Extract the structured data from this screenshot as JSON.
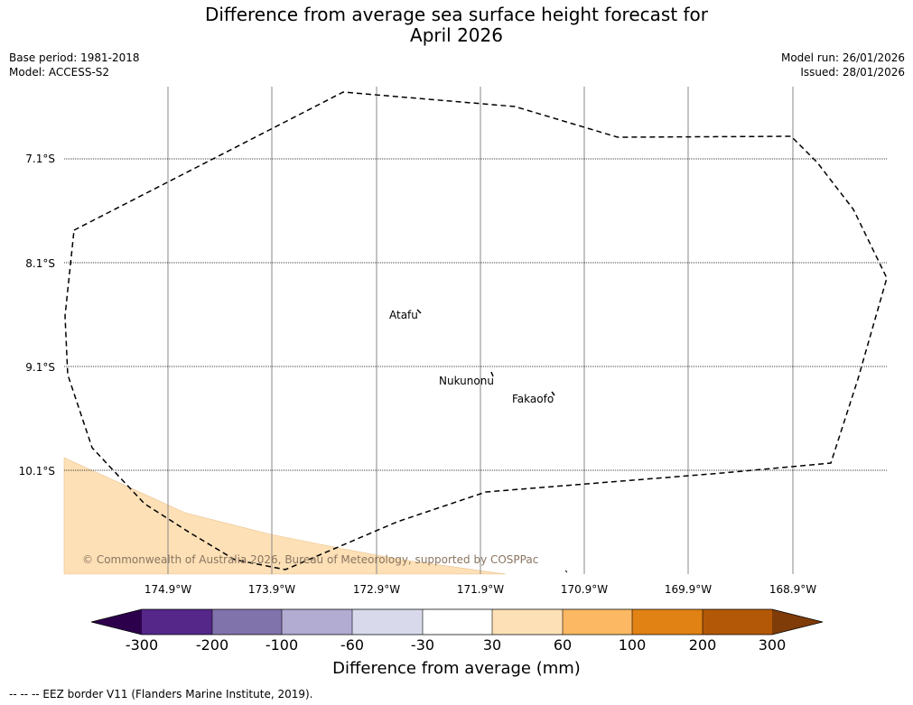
{
  "title": {
    "line1": "Difference from average sea surface height forecast for",
    "line2": "April 2026"
  },
  "meta": {
    "base_period": "Base period: 1981-2018",
    "model": "Model: ACCESS-S2",
    "model_run": "Model run: 26/01/2026",
    "issued": "Issued: 28/01/2026"
  },
  "map": {
    "latitudes": [
      "7.1°S",
      "8.1°S",
      "9.1°S",
      "10.1°S"
    ],
    "longitudes": [
      "174.9°W",
      "173.9°W",
      "172.9°W",
      "171.9°W",
      "170.9°W",
      "169.9°W",
      "168.9°W"
    ],
    "islands": [
      "Atafu",
      "Nukunonu",
      "Fakaofo"
    ],
    "shaded_region_category": "30 to 60 mm",
    "copyright": "© Commonwealth of Australia 2026, Bureau of Meteorology, supported by COSPPac"
  },
  "colorbar": {
    "title": "Difference from average (mm)",
    "ticks": [
      "-300",
      "-200",
      "-100",
      "-60",
      "-30",
      "30",
      "60",
      "100",
      "200",
      "300"
    ],
    "colors": {
      "extend_low": "#2d004b",
      "bins": [
        "#542788",
        "#8073ac",
        "#b2abd2",
        "#d8daeb",
        "#ffffff",
        "#fee0b6",
        "#fdb863",
        "#e08214",
        "#b35806"
      ],
      "extend_high": "#7f3b08"
    },
    "shade_color": "#fde0b6"
  },
  "footer": {
    "legend": "--  --  -- EEZ border V11 (Flanders Marine Institute, 2019)."
  }
}
